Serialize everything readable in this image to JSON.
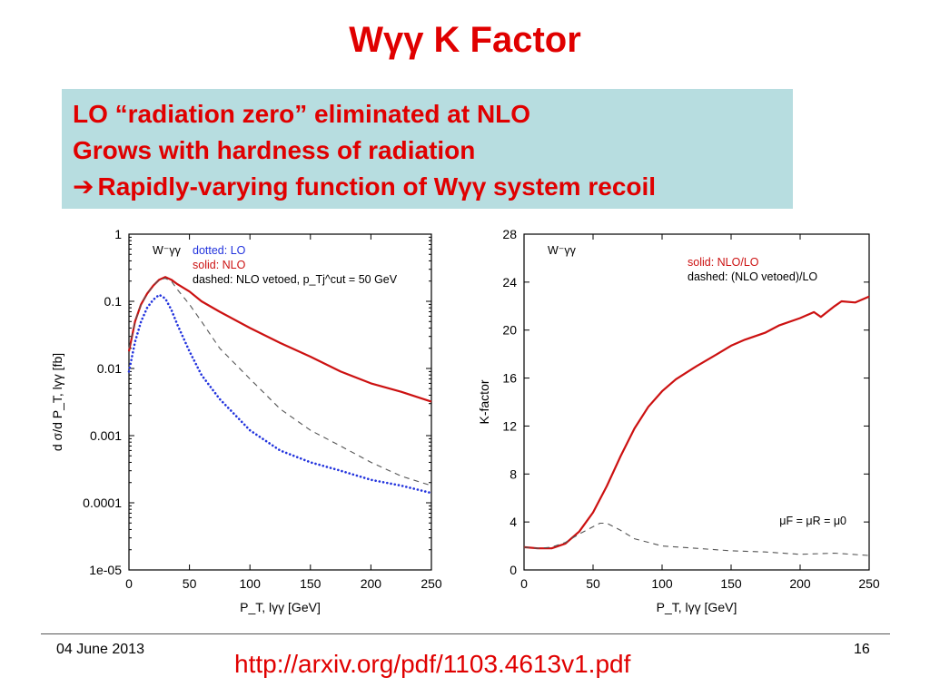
{
  "slide": {
    "title": "Wγγ K Factor",
    "bullets": [
      "LO “radiation zero” eliminated at NLO",
      "Grows with hardness of radiation",
      "Rapidly-varying function of Wγγ system recoil"
    ],
    "arrow_icon": "right-arrow-icon"
  },
  "footer": {
    "date": "04 June 2013",
    "link": "http://arxiv.org/pdf/1103.4613v1.pdf",
    "page": "16"
  },
  "colors": {
    "accent": "#e00000",
    "callout_bg": "#b7dde0",
    "lo": "#2233dd",
    "nlo": "#cc1111",
    "vetoed": "#555555"
  },
  "chart_data": [
    {
      "type": "line",
      "process": "W⁻γγ",
      "xlabel": "P_T, lγγ [GeV]",
      "ylabel": "d σ/d P_T, lγγ [fb]",
      "xlim": [
        0,
        250
      ],
      "ylim": [
        1e-05,
        1
      ],
      "yscale": "log",
      "xticks": [
        "0",
        "50",
        "100",
        "150",
        "200",
        "250"
      ],
      "yticks": [
        "1e-05",
        "0.0001",
        "0.001",
        "0.01",
        "0.1",
        "1"
      ],
      "legend": [
        {
          "text": "dotted: LO",
          "color": "#2233dd"
        },
        {
          "text": "solid: NLO",
          "color": "#cc1111"
        },
        {
          "text": "dashed: NLO vetoed, p_Tj^cut = 50 GeV",
          "color": "#000000"
        }
      ],
      "series": [
        {
          "name": "LO",
          "style": "dotted",
          "color": "#2233dd",
          "x": [
            0,
            5,
            10,
            15,
            20,
            25,
            30,
            35,
            40,
            50,
            60,
            75,
            100,
            125,
            150,
            175,
            200,
            225,
            250
          ],
          "y": [
            0.009,
            0.025,
            0.05,
            0.08,
            0.105,
            0.125,
            0.11,
            0.075,
            0.045,
            0.018,
            0.008,
            0.0035,
            0.0012,
            0.0006,
            0.0004,
            0.0003,
            0.00022,
            0.00018,
            0.00014
          ]
        },
        {
          "name": "NLO",
          "style": "solid",
          "color": "#cc1111",
          "x": [
            0,
            5,
            10,
            15,
            20,
            25,
            30,
            35,
            40,
            50,
            60,
            75,
            100,
            125,
            150,
            175,
            200,
            225,
            250
          ],
          "y": [
            0.018,
            0.05,
            0.09,
            0.13,
            0.17,
            0.21,
            0.23,
            0.21,
            0.18,
            0.14,
            0.1,
            0.07,
            0.04,
            0.024,
            0.015,
            0.009,
            0.006,
            0.0045,
            0.0032
          ]
        },
        {
          "name": "NLO vetoed",
          "style": "dashed",
          "color": "#555555",
          "x": [
            0,
            5,
            10,
            15,
            20,
            25,
            30,
            35,
            40,
            50,
            60,
            75,
            100,
            125,
            150,
            175,
            200,
            225,
            250
          ],
          "y": [
            0.02,
            0.05,
            0.09,
            0.13,
            0.17,
            0.21,
            0.22,
            0.2,
            0.15,
            0.09,
            0.05,
            0.02,
            0.007,
            0.0025,
            0.0012,
            0.0007,
            0.0004,
            0.00025,
            0.00018
          ]
        }
      ]
    },
    {
      "type": "line",
      "process": "W⁻γγ",
      "xlabel": "P_T, lγγ [GeV]",
      "ylabel": "K-factor",
      "xlim": [
        0,
        250
      ],
      "ylim": [
        0,
        28
      ],
      "yscale": "linear",
      "xticks": [
        "0",
        "50",
        "100",
        "150",
        "200",
        "250"
      ],
      "yticks": [
        "0",
        "4",
        "8",
        "12",
        "16",
        "20",
        "24",
        "28"
      ],
      "legend": [
        {
          "text": "solid: NLO/LO",
          "color": "#cc1111"
        },
        {
          "text": "dashed: (NLO vetoed)/LO",
          "color": "#000000"
        }
      ],
      "annotation": "μF = μR = μ0",
      "series": [
        {
          "name": "NLO/LO",
          "style": "solid",
          "color": "#cc1111",
          "x": [
            0,
            10,
            20,
            30,
            40,
            50,
            60,
            70,
            80,
            90,
            100,
            110,
            125,
            140,
            150,
            160,
            175,
            185,
            200,
            210,
            215,
            225,
            230,
            240,
            250
          ],
          "y": [
            1.9,
            1.8,
            1.8,
            2.2,
            3.2,
            4.8,
            7.0,
            9.5,
            11.8,
            13.6,
            14.9,
            15.9,
            17.0,
            18.0,
            18.7,
            19.2,
            19.8,
            20.4,
            21.0,
            21.5,
            21.1,
            22.0,
            22.4,
            22.3,
            22.8
          ]
        },
        {
          "name": "(NLO vetoed)/LO",
          "style": "dashed",
          "color": "#555555",
          "x": [
            0,
            10,
            20,
            30,
            40,
            50,
            55,
            60,
            70,
            80,
            100,
            125,
            150,
            175,
            200,
            225,
            250
          ],
          "y": [
            1.9,
            1.8,
            1.9,
            2.3,
            3.0,
            3.6,
            3.9,
            3.9,
            3.3,
            2.6,
            2.0,
            1.8,
            1.6,
            1.5,
            1.3,
            1.4,
            1.2
          ]
        }
      ]
    }
  ]
}
